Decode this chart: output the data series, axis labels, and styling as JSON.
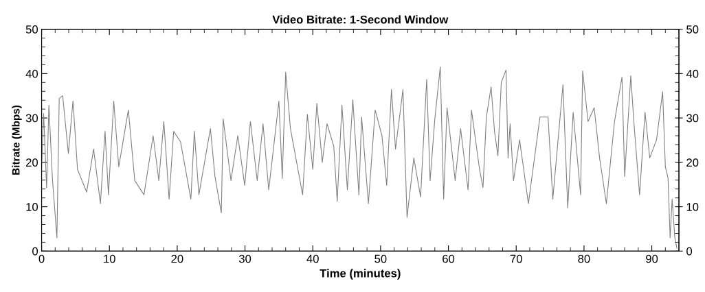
{
  "chart_data": {
    "type": "line",
    "title": "Video Bitrate: 1-Second Window",
    "xlabel": "Time (minutes)",
    "ylabel": "Bitrate (Mbps)",
    "xlim": [
      0,
      94
    ],
    "ylim": [
      0,
      50
    ],
    "y2lim": [
      0,
      50
    ],
    "xticks": [
      0,
      {
        "value": 2,
        "label": null
      },
      {
        "value": 4,
        "label": null
      },
      {
        "value": 6,
        "label": null
      },
      {
        "value": 8,
        "label": null
      },
      10,
      {
        "value": 12,
        "label": null
      },
      {
        "value": 14,
        "label": null
      },
      {
        "value": 16,
        "label": null
      },
      {
        "value": 18,
        "label": null
      },
      20,
      {
        "value": 22,
        "label": null
      },
      {
        "value": 24,
        "label": null
      },
      {
        "value": 26,
        "label": null
      },
      {
        "value": 28,
        "label": null
      },
      30,
      {
        "value": 32,
        "label": null
      },
      {
        "value": 34,
        "label": null
      },
      {
        "value": 36,
        "label": null
      },
      {
        "value": 38,
        "label": null
      },
      40,
      {
        "value": 42,
        "label": null
      },
      {
        "value": 44,
        "label": null
      },
      {
        "value": 46,
        "label": null
      },
      {
        "value": 48,
        "label": null
      },
      50,
      {
        "value": 52,
        "label": null
      },
      {
        "value": 54,
        "label": null
      },
      {
        "value": 56,
        "label": null
      },
      {
        "value": 58,
        "label": null
      },
      60,
      {
        "value": 62,
        "label": null
      },
      {
        "value": 64,
        "label": null
      },
      {
        "value": 66,
        "label": null
      },
      {
        "value": 68,
        "label": null
      },
      70,
      {
        "value": 72,
        "label": null
      },
      {
        "value": 74,
        "label": null
      },
      {
        "value": 76,
        "label": null
      },
      {
        "value": 78,
        "label": null
      },
      80,
      {
        "value": 82,
        "label": null
      },
      {
        "value": 84,
        "label": null
      },
      {
        "value": 86,
        "label": null
      },
      {
        "value": 88,
        "label": null
      },
      90,
      {
        "value": 92,
        "label": null
      }
    ],
    "yticks": [
      0,
      {
        "value": 2,
        "label": null
      },
      {
        "value": 4,
        "label": null
      },
      {
        "value": 6,
        "label": null
      },
      {
        "value": 8,
        "label": null
      },
      10,
      {
        "value": 12,
        "label": null
      },
      {
        "value": 14,
        "label": null
      },
      {
        "value": 16,
        "label": null
      },
      {
        "value": 18,
        "label": null
      },
      20,
      {
        "value": 22,
        "label": null
      },
      {
        "value": 24,
        "label": null
      },
      {
        "value": 26,
        "label": null
      },
      {
        "value": 28,
        "label": null
      },
      30,
      {
        "value": 32,
        "label": null
      },
      {
        "value": 34,
        "label": null
      },
      {
        "value": 36,
        "label": null
      },
      {
        "value": 38,
        "label": null
      },
      40,
      {
        "value": 42,
        "label": null
      },
      {
        "value": 44,
        "label": null
      },
      {
        "value": 46,
        "label": null
      },
      {
        "value": 48,
        "label": null
      },
      50
    ],
    "y2ticks": [
      0,
      {
        "value": 2,
        "label": null
      },
      {
        "value": 4,
        "label": null
      },
      {
        "value": 6,
        "label": null
      },
      {
        "value": 8,
        "label": null
      },
      10,
      {
        "value": 12,
        "label": null
      },
      {
        "value": 14,
        "label": null
      },
      {
        "value": 16,
        "label": null
      },
      {
        "value": 18,
        "label": null
      },
      20,
      {
        "value": 22,
        "label": null
      },
      {
        "value": 24,
        "label": null
      },
      {
        "value": 26,
        "label": null
      },
      {
        "value": 28,
        "label": null
      },
      30,
      {
        "value": 32,
        "label": null
      },
      {
        "value": 34,
        "label": null
      },
      {
        "value": 36,
        "label": null
      },
      {
        "value": 38,
        "label": null
      },
      40,
      {
        "value": 42,
        "label": null
      },
      {
        "value": 44,
        "label": null
      },
      {
        "value": 46,
        "label": null
      },
      {
        "value": 48,
        "label": null
      },
      50
    ],
    "grid": false,
    "legend": false,
    "marker": "none",
    "line_style": "solid",
    "series": [
      {
        "color": "#808080",
        "x": [
          0,
          0.3,
          0.74,
          1.08,
          1.59,
          2.26,
          2.6,
          3.11,
          3.95,
          4.63,
          5.3,
          6.65,
          7.67,
          8.68,
          9.36,
          9.86,
          10.64,
          11.38,
          12.8,
          13.74,
          15.1,
          16.45,
          17.29,
          18.03,
          18.81,
          19.48,
          20.5,
          22.02,
          22.53,
          23.2,
          24.9,
          25.57,
          26.51,
          26.78,
          27.93,
          28.94,
          29.96,
          30.8,
          31.8,
          32.66,
          33.5,
          35.0,
          35.5,
          36.0,
          36.7,
          38.5,
          39.2,
          40.0,
          40.6,
          41.4,
          42.1,
          43.1,
          43.6,
          44.3,
          45.1,
          45.9,
          46.8,
          47.2,
          48.2,
          49.2,
          50.2,
          50.9,
          51.6,
          52.2,
          53.3,
          53.9,
          54.9,
          55.9,
          56.8,
          57.3,
          58.0,
          58.8,
          59.3,
          59.8,
          61.0,
          61.8,
          62.9,
          63.4,
          64.6,
          65.1,
          65.6,
          66.3,
          66.8,
          67.3,
          67.8,
          68.5,
          68.8,
          69.1,
          69.6,
          70.5,
          71.8,
          73.5,
          74.7,
          75.4,
          76.9,
          77.6,
          78.4,
          79.5,
          79.8,
          80.6,
          81.5,
          82.3,
          83.3,
          84.5,
          85.6,
          86.0,
          86.9,
          87.4,
          88.2,
          89.0,
          89.7,
          90.7,
          91.6,
          92.0,
          92.4,
          92.7,
          93.0,
          93.4,
          93.7
        ],
        "values": [
          19,
          31,
          14.3,
          32.9,
          16.4,
          3,
          34.4,
          35,
          22,
          33.8,
          18.4,
          13.3,
          23,
          10.7,
          27,
          12.7,
          33.8,
          19,
          31.8,
          15.9,
          12.7,
          26,
          15.9,
          29.2,
          11.7,
          27,
          24.6,
          11.7,
          27,
          12.7,
          27.6,
          16.8,
          8.6,
          29.8,
          15.9,
          26,
          14.8,
          29.2,
          15.9,
          28.7,
          13.8,
          33.8,
          16.4,
          40.3,
          27.6,
          12.7,
          30.8,
          18.4,
          33.3,
          20,
          28.7,
          23.6,
          11.2,
          32.9,
          13.8,
          34.1,
          12.7,
          30.2,
          10.7,
          31.8,
          26,
          14.8,
          36.4,
          23,
          36.4,
          7.6,
          21,
          12.2,
          38.7,
          15.9,
          29.8,
          41.5,
          11.7,
          32.3,
          15.9,
          27.6,
          13.8,
          31.8,
          18.4,
          14.3,
          30.2,
          37,
          27,
          21.5,
          38,
          40.8,
          21,
          28.7,
          15.9,
          25.1,
          10.7,
          30.2,
          30.2,
          11.7,
          37.5,
          9.7,
          31.3,
          12.7,
          40.6,
          29.2,
          32.3,
          21,
          10.7,
          29.2,
          39.2,
          16.8,
          39.5,
          28.2,
          12.7,
          31.3,
          21,
          25.1,
          35.9,
          19,
          16.4,
          3,
          11.7,
          3,
          0.7
        ]
      }
    ]
  }
}
